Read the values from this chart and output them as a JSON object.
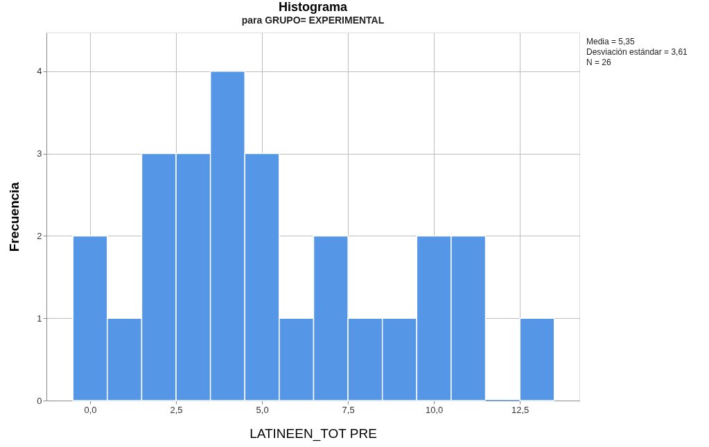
{
  "chart_data": {
    "type": "histogram",
    "title": "Histograma",
    "subtitle": "para GRUPO= EXPERIMENTAL",
    "xlabel": "LATINEEN_TOT PRE",
    "ylabel": "Frecuencia",
    "bins": [
      -0.5,
      0.5,
      1.5,
      2.5,
      3.5,
      4.5,
      5.5,
      6.5,
      7.5,
      8.5,
      9.5,
      10.5,
      11.5,
      12.5,
      13.5
    ],
    "values": [
      2,
      1,
      3,
      3,
      4,
      3,
      1,
      2,
      1,
      1,
      2,
      2,
      0,
      1
    ],
    "color": "#5596e6",
    "xlim": [
      -1.27,
      14.23
    ],
    "xticks": [
      {
        "value": 0,
        "label": "0,0"
      },
      {
        "value": 2.5,
        "label": "2,5"
      },
      {
        "value": 5,
        "label": "5,0"
      },
      {
        "value": 7.5,
        "label": "7,5"
      },
      {
        "value": 10,
        "label": "10,0"
      },
      {
        "value": 12.5,
        "label": "12,5"
      }
    ],
    "ylim": [
      0,
      4.47
    ],
    "yticks": [
      0,
      1,
      2,
      3,
      4
    ],
    "grid": true,
    "annotations": [
      "Media = 5,35",
      "Desviación estándar = 3,61",
      "N = 26"
    ]
  }
}
